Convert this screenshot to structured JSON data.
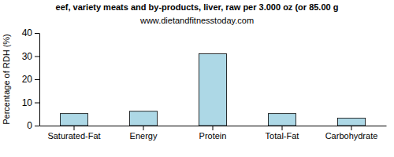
{
  "chart_data": {
    "type": "bar",
    "title": "eef, variety meats and by-products, liver, raw per 3.000 oz (or 85.00 g",
    "subtitle": "www.dietandfitnesstoday.com",
    "y_label": "Percentage of RDH (%)",
    "categories": [
      "Saturated-Fat",
      "Energy",
      "Protein",
      "Total-Fat",
      "Carbohydrate"
    ],
    "values": [
      5.2,
      6.2,
      31,
      5.2,
      3.2
    ],
    "color": "#add8e6",
    "ylim": [
      0,
      40
    ],
    "yticks": [
      0,
      10,
      20,
      30,
      40
    ],
    "grid": false
  }
}
